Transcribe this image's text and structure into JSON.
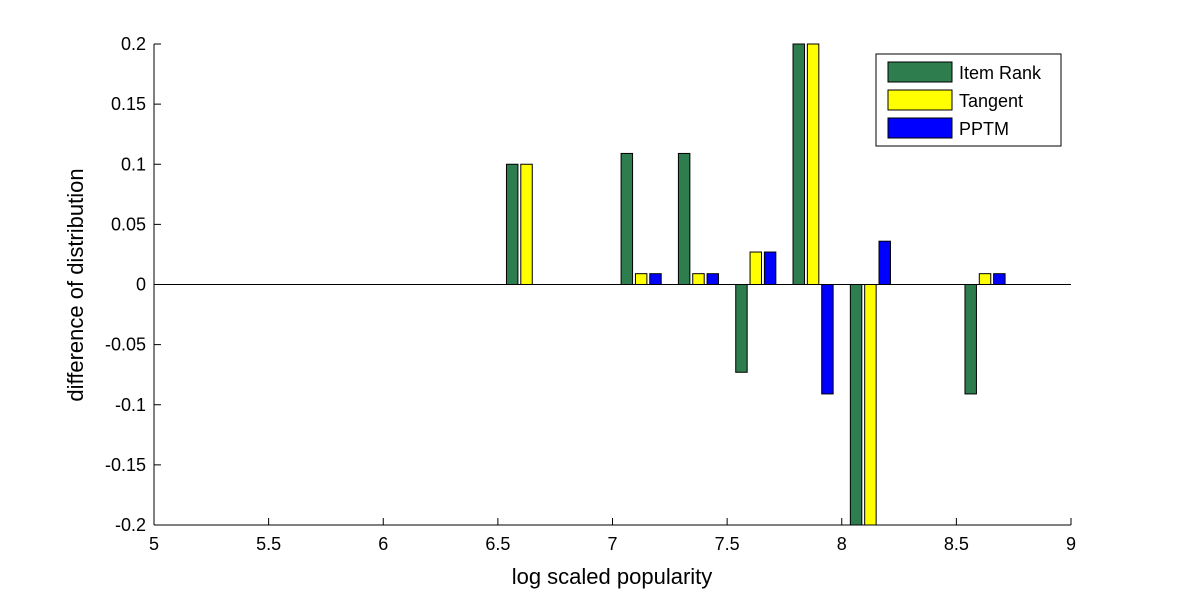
{
  "chart_data": {
    "type": "bar",
    "title": "",
    "xlabel": "log scaled popularity",
    "ylabel": "difference of distribution",
    "xlim": [
      5,
      9
    ],
    "ylim": [
      -0.2,
      0.2
    ],
    "x_ticks": [
      "5",
      "5.5",
      "6",
      "6.5",
      "7",
      "7.5",
      "8",
      "8.5",
      "9"
    ],
    "y_ticks": [
      "0.2",
      "0.15",
      "0.1",
      "0.05",
      "0",
      "-0.05",
      "-0.1",
      "-0.15",
      "-0.2"
    ],
    "grid": false,
    "legend_position": "top-right",
    "x": [
      6.625,
      7.125,
      7.375,
      7.625,
      7.875,
      8.125,
      8.625
    ],
    "series": [
      {
        "name": "Item Rank",
        "color": "#2E7D4F",
        "values": [
          0.1,
          0.109,
          0.109,
          -0.073,
          0.2,
          -0.2,
          -0.091
        ]
      },
      {
        "name": "Tangent",
        "color": "#FFFF00",
        "values": [
          0.1,
          0.009,
          0.009,
          0.027,
          0.2,
          -0.2,
          0.009
        ]
      },
      {
        "name": "PPTM",
        "color": "#0000FF",
        "values": [
          0.0,
          0.009,
          0.009,
          0.027,
          -0.091,
          0.036,
          0.009
        ]
      }
    ]
  }
}
